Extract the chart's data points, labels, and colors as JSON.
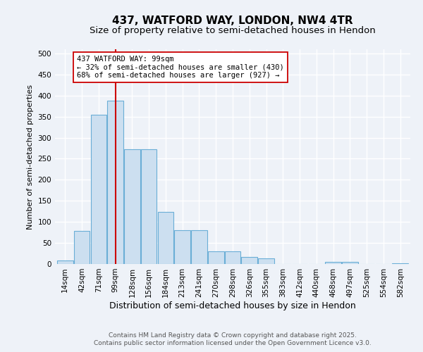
{
  "title_line1": "437, WATFORD WAY, LONDON, NW4 4TR",
  "title_line2": "Size of property relative to semi-detached houses in Hendon",
  "xlabel": "Distribution of semi-detached houses by size in Hendon",
  "ylabel": "Number of semi-detached properties",
  "footer_line1": "Contains HM Land Registry data © Crown copyright and database right 2025.",
  "footer_line2": "Contains public sector information licensed under the Open Government Licence v3.0.",
  "bins": [
    "14sqm",
    "42sqm",
    "71sqm",
    "99sqm",
    "128sqm",
    "156sqm",
    "184sqm",
    "213sqm",
    "241sqm",
    "270sqm",
    "298sqm",
    "326sqm",
    "355sqm",
    "383sqm",
    "412sqm",
    "440sqm",
    "468sqm",
    "497sqm",
    "525sqm",
    "554sqm",
    "582sqm"
  ],
  "values": [
    8,
    78,
    355,
    388,
    272,
    272,
    124,
    80,
    80,
    30,
    30,
    17,
    13,
    0,
    0,
    0,
    5,
    5,
    0,
    0,
    2
  ],
  "bar_color": "#ccdff0",
  "bar_edge_color": "#6aaed6",
  "vline_x_index": 3,
  "vline_color": "#cc0000",
  "annotation_text": "437 WATFORD WAY: 99sqm\n← 32% of semi-detached houses are smaller (430)\n68% of semi-detached houses are larger (927) →",
  "annotation_box_facecolor": "#ffffff",
  "annotation_box_edgecolor": "#cc0000",
  "ylim": [
    0,
    510
  ],
  "yticks": [
    0,
    50,
    100,
    150,
    200,
    250,
    300,
    350,
    400,
    450,
    500
  ],
  "background_color": "#eef2f8",
  "plot_bg_color": "#eef2f8",
  "grid_color": "#ffffff",
  "title_fontsize": 11,
  "subtitle_fontsize": 9.5,
  "ylabel_fontsize": 8,
  "xlabel_fontsize": 9,
  "tick_fontsize": 7.5,
  "footer_fontsize": 6.5,
  "annot_fontsize": 7.5
}
